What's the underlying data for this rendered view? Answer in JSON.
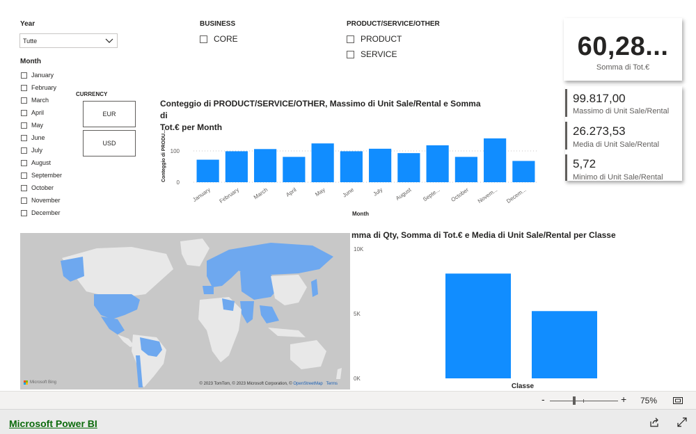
{
  "slicers": {
    "year": {
      "title": "Year",
      "selected": "Tutte"
    },
    "month": {
      "title": "Month",
      "items": [
        "January",
        "February",
        "March",
        "April",
        "May",
        "June",
        "July",
        "August",
        "September",
        "October",
        "November",
        "December"
      ]
    },
    "currency": {
      "title": "CURRENCY",
      "options": [
        "EUR",
        "USD"
      ]
    },
    "business": {
      "title": "BUSINESS",
      "items": [
        "CORE"
      ]
    },
    "pso": {
      "title": "PRODUCT/SERVICE/OTHER",
      "items": [
        "PRODUCT",
        "SERVICE"
      ]
    }
  },
  "kpi_card": {
    "value": "60,28...",
    "caption": "Somma di Tot.€"
  },
  "multi_card": {
    "rows": [
      {
        "value": "99.817,00",
        "caption": "Massimo di Unit Sale/Rental"
      },
      {
        "value": "26.273,53",
        "caption": "Media di Unit Sale/Rental"
      },
      {
        "value": "5,72",
        "caption": "Minimo di Unit Sale/Rental"
      }
    ]
  },
  "month_chart": {
    "title_line1": "Conteggio di PRODUCT/SERVICE/OTHER, Massimo di Unit Sale/Rental e Somma di",
    "title_line2": "Tot.€ per Month",
    "y_title": "Conteggio di PRODU...",
    "x_title": "Month",
    "tick_labels": [
      "0",
      "100"
    ],
    "x_labels": [
      "January",
      "February",
      "March",
      "April",
      "May",
      "June",
      "July",
      "August",
      "Septe...",
      "October",
      "Novem...",
      "Decem..."
    ]
  },
  "class_chart": {
    "title": "mma di Qty, Somma di Tot.€ e Media di Unit Sale/Rental per Classe",
    "x_title": "Classe",
    "tick_labels": [
      "0K",
      "5K",
      "10K"
    ]
  },
  "chart_data": [
    {
      "type": "bar",
      "title": "Conteggio di PRODUCT/SERVICE/OTHER, Massimo di Unit Sale/Rental e Somma di Tot.€ per Month",
      "xlabel": "Month",
      "ylabel": "Conteggio di PRODU...",
      "categories": [
        "January",
        "February",
        "March",
        "April",
        "May",
        "June",
        "July",
        "August",
        "Septe...",
        "October",
        "Novem...",
        "Decem..."
      ],
      "values": [
        72,
        99,
        106,
        81,
        124,
        99,
        107,
        93,
        118,
        81,
        140,
        68
      ],
      "ylim": [
        0,
        160
      ],
      "grid": true,
      "color": "#118DFF"
    },
    {
      "type": "bar",
      "title": "mma di Qty, Somma di Tot.€ e Media di Unit Sale/Rental per Classe",
      "xlabel": "Classe",
      "ylabel": "",
      "categories": [
        "",
        ""
      ],
      "values": [
        8100,
        5200
      ],
      "ylim": [
        0,
        10000
      ],
      "grid": false,
      "color": "#118DFF"
    }
  ],
  "map": {
    "attribution": "© 2023 TomTom, © 2023 Microsoft Corporation, ©",
    "osm": "OpenStreetMap",
    "terms": "Terms",
    "bing": "Microsoft Bing",
    "land_color": "#e8e8e8",
    "highlight_color": "#6ea8ef"
  },
  "footer": {
    "brand": "Microsoft Power BI",
    "zoom": "75%",
    "minus": "-",
    "plus": "+"
  },
  "colors": {
    "bar": "#118DFF"
  }
}
